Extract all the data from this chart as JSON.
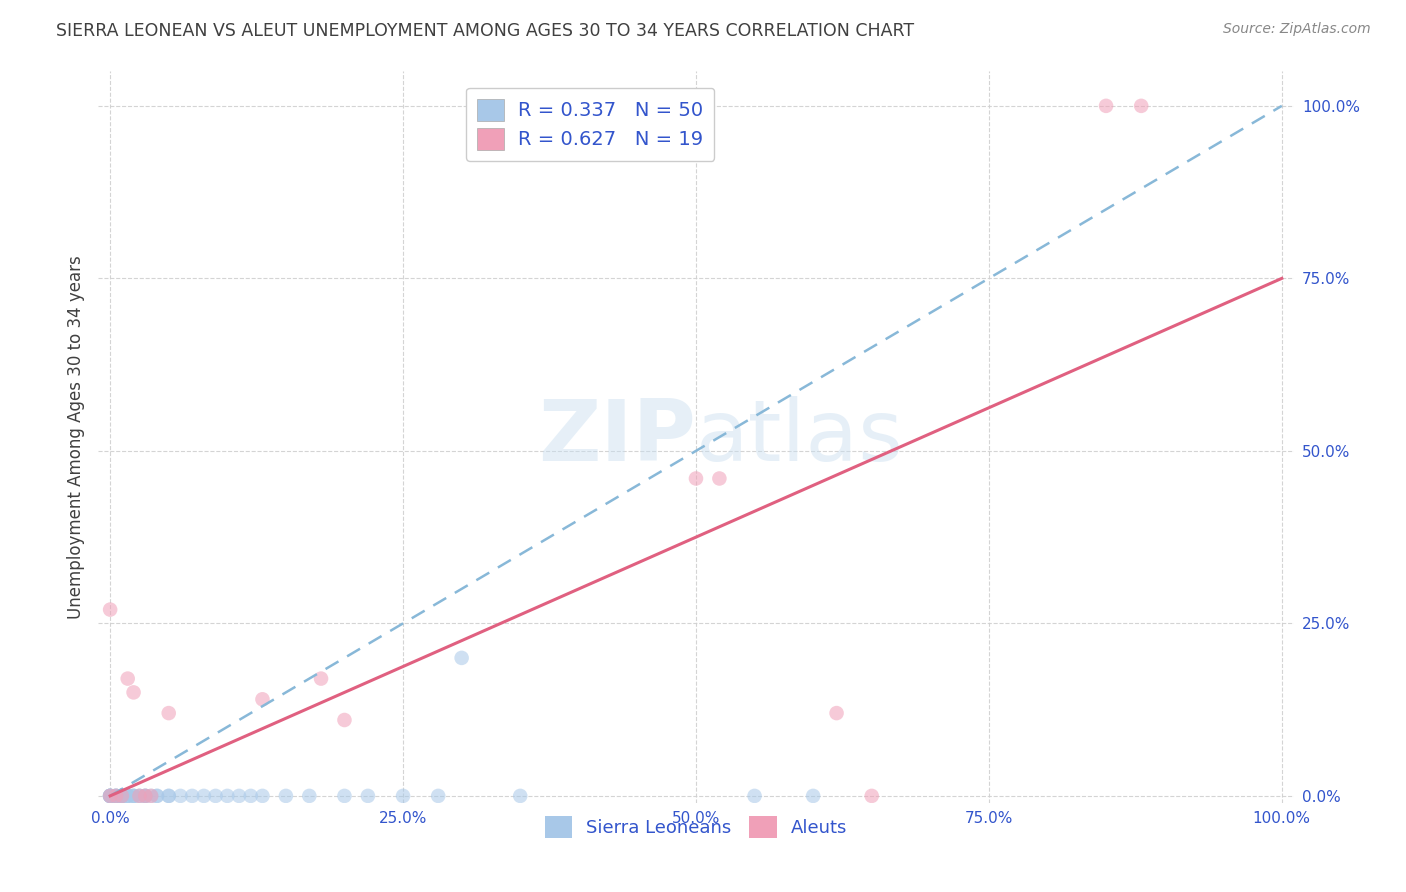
{
  "title": "SIERRA LEONEAN VS ALEUT UNEMPLOYMENT AMONG AGES 30 TO 34 YEARS CORRELATION CHART",
  "source": "Source: ZipAtlas.com",
  "ylabel": "Unemployment Among Ages 30 to 34 years",
  "watermark": "ZIPatlas",
  "blue_R": 0.337,
  "blue_N": 50,
  "pink_R": 0.627,
  "pink_N": 19,
  "blue_color": "#A8C8E8",
  "pink_color": "#F0A0B8",
  "blue_line_color": "#88B8D8",
  "pink_line_color": "#E06080",
  "legend_text_color": "#3355CC",
  "axis_tick_color": "#3355CC",
  "grid_color": "#D0D0D0",
  "title_color": "#404040",
  "blue_x": [
    0.0,
    0.0,
    0.0,
    0.0,
    0.0,
    0.0,
    0.005,
    0.005,
    0.005,
    0.005,
    0.01,
    0.01,
    0.01,
    0.01,
    0.01,
    0.01,
    0.015,
    0.015,
    0.015,
    0.02,
    0.02,
    0.02,
    0.025,
    0.025,
    0.03,
    0.03,
    0.03,
    0.035,
    0.04,
    0.04,
    0.05,
    0.05,
    0.06,
    0.07,
    0.08,
    0.09,
    0.1,
    0.11,
    0.12,
    0.13,
    0.15,
    0.17,
    0.2,
    0.22,
    0.25,
    0.28,
    0.3,
    0.35,
    0.55,
    0.6
  ],
  "blue_y": [
    0.0,
    0.0,
    0.0,
    0.0,
    0.0,
    0.0,
    0.0,
    0.0,
    0.0,
    0.0,
    0.0,
    0.0,
    0.0,
    0.0,
    0.0,
    0.0,
    0.0,
    0.0,
    0.0,
    0.0,
    0.0,
    0.0,
    0.0,
    0.0,
    0.0,
    0.0,
    0.0,
    0.0,
    0.0,
    0.0,
    0.0,
    0.0,
    0.0,
    0.0,
    0.0,
    0.0,
    0.0,
    0.0,
    0.0,
    0.0,
    0.0,
    0.0,
    0.0,
    0.0,
    0.0,
    0.0,
    0.2,
    0.0,
    0.0,
    0.0
  ],
  "pink_x": [
    0.0,
    0.0,
    0.005,
    0.01,
    0.015,
    0.02,
    0.025,
    0.03,
    0.035,
    0.05,
    0.13,
    0.18,
    0.2,
    0.5,
    0.52,
    0.62,
    0.65,
    0.85,
    0.88
  ],
  "pink_y": [
    0.0,
    0.27,
    0.0,
    0.0,
    0.17,
    0.15,
    0.0,
    0.0,
    0.0,
    0.12,
    0.14,
    0.17,
    0.11,
    0.46,
    0.46,
    0.12,
    0.0,
    1.0,
    1.0
  ],
  "blue_trend_x": [
    0.0,
    1.0
  ],
  "blue_trend_y": [
    0.0,
    1.0
  ],
  "pink_trend_x": [
    0.0,
    1.0
  ],
  "pink_trend_y": [
    0.0,
    0.75
  ],
  "xlim": [
    -0.01,
    1.01
  ],
  "ylim": [
    -0.01,
    1.05
  ],
  "x_ticks": [
    0.0,
    0.25,
    0.5,
    0.75,
    1.0
  ],
  "x_tick_labels": [
    "0.0%",
    "25.0%",
    "50.0%",
    "75.0%",
    "100.0%"
  ],
  "y_ticks": [
    0.0,
    0.25,
    0.5,
    0.75,
    1.0
  ],
  "y_tick_labels": [
    "0.0%",
    "25.0%",
    "50.0%",
    "75.0%",
    "100.0%"
  ],
  "marker_size": 110,
  "alpha": 0.55
}
